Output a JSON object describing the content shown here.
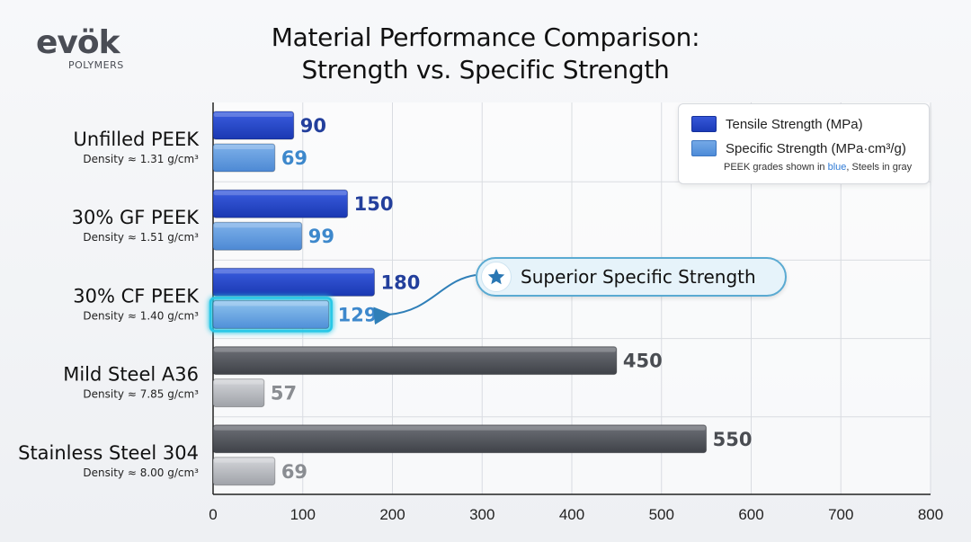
{
  "brand": {
    "name": "evok",
    "display": "evök",
    "sub": "POLYMERS"
  },
  "chart_data": {
    "type": "bar",
    "orientation": "horizontal",
    "title": "Material Performance Comparison:",
    "subtitle": "Strength vs. Specific Strength",
    "categories": [
      "Unfilled PEEK",
      "30% GF PEEK",
      "30% CF PEEK",
      "Mild Steel A36",
      "Stainless Steel 304"
    ],
    "densities": [
      "Density ≈ 1.31 g/cm³",
      "Density ≈ 1.51 g/cm³",
      "Density ≈ 1.40 g/cm³",
      "Density ≈ 7.85 g/cm³",
      "Density ≈ 8.00 g/cm³"
    ],
    "groups": [
      "peek",
      "peek",
      "peek",
      "steel",
      "steel"
    ],
    "series": [
      {
        "name": "Tensile Strength (MPa)",
        "values": [
          90,
          150,
          180,
          450,
          550
        ]
      },
      {
        "name": "Specific Strength (MPa·cm³/g)",
        "values": [
          69,
          99,
          129,
          57,
          69
        ]
      }
    ],
    "xlim": [
      0,
      800
    ],
    "xticks": [
      0,
      100,
      200,
      300,
      400,
      500,
      600,
      700,
      800
    ],
    "grid": true,
    "legend": {
      "placement": "top-right",
      "note_prefix": "PEEK grades shown in ",
      "note_blue": "blue",
      "note_suffix": ", Steels in gray"
    },
    "annotation": {
      "text": "Superior Specific Strength",
      "target_category": "30% CF PEEK",
      "target_series": 1
    }
  },
  "colors": {
    "peek_tensile": "#2346c8",
    "peek_specific": "#5b9ade",
    "steel_tensile": "#55585e",
    "steel_specific": "#b5b8bd",
    "highlight": "#28c7e6",
    "label_dark_blue": "#233f9c",
    "label_light_blue": "#3d88cc",
    "label_steel": "#4a4d52",
    "label_steel_light": "#8a8d92"
  }
}
